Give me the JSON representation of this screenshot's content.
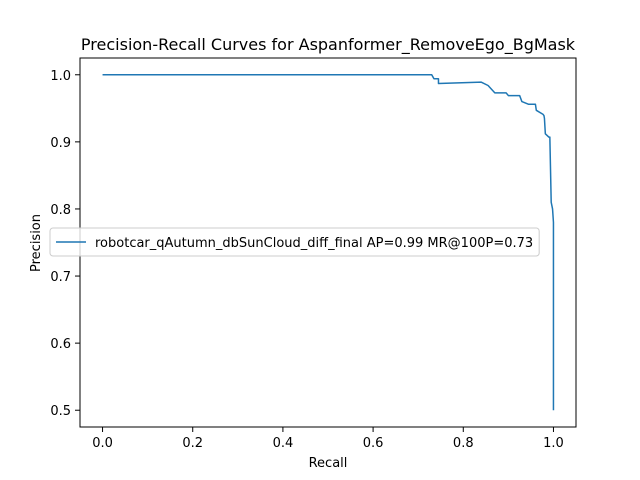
{
  "chart_data": {
    "type": "line",
    "title": "Precision-Recall Curves for Aspanformer_RemoveEgo_BgMask",
    "xlabel": "Recall",
    "ylabel": "Precision",
    "xlim": [
      -0.05,
      1.05
    ],
    "ylim": [
      0.475,
      1.025
    ],
    "xticks": [
      0.0,
      0.2,
      0.4,
      0.6,
      0.8,
      1.0
    ],
    "xtick_labels": [
      "0.0",
      "0.2",
      "0.4",
      "0.6",
      "0.8",
      "1.0"
    ],
    "yticks": [
      0.5,
      0.6,
      0.7,
      0.8,
      0.9,
      1.0
    ],
    "ytick_labels": [
      "0.5",
      "0.6",
      "0.7",
      "0.8",
      "0.9",
      "1.0"
    ],
    "grid": false,
    "legend_placement": "center-right",
    "series": [
      {
        "name": "robotcar_qAutumn_dbSunCloud_diff_final AP=0.99 MR@100P=0.73",
        "color": "#1f77b4",
        "x": [
          0.0,
          0.73,
          0.735,
          0.745,
          0.745,
          0.84,
          0.855,
          0.87,
          0.895,
          0.9,
          0.925,
          0.93,
          0.945,
          0.96,
          0.962,
          0.977,
          0.979,
          0.98,
          0.982,
          0.99,
          0.992,
          0.995,
          0.998,
          1.0,
          1.0
        ],
        "y": [
          1.0,
          1.0,
          0.994,
          0.994,
          0.987,
          0.989,
          0.984,
          0.973,
          0.973,
          0.969,
          0.969,
          0.96,
          0.956,
          0.956,
          0.947,
          0.941,
          0.939,
          0.935,
          0.912,
          0.907,
          0.907,
          0.81,
          0.8,
          0.78,
          0.5
        ]
      }
    ]
  }
}
